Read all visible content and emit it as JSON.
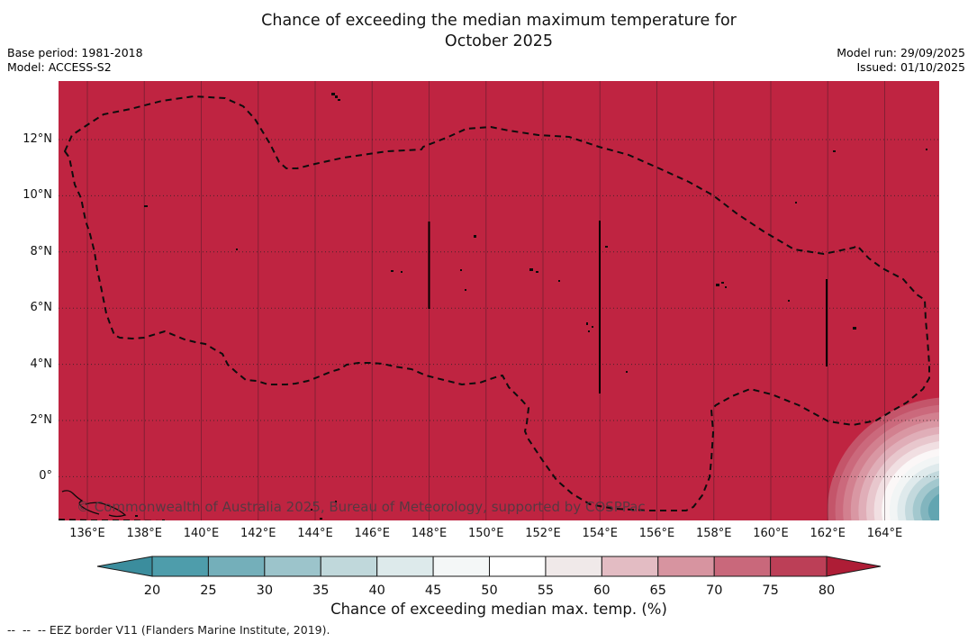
{
  "header": {
    "title_line1": "Chance of exceeding the median maximum temperature for",
    "title_line2": "October 2025",
    "meta_left": [
      "Base period: 1981-2018",
      "Model: ACCESS-S2"
    ],
    "meta_right": [
      "Model run: 29/09/2025",
      "Issued: 01/10/2025"
    ]
  },
  "map": {
    "watermark": "© Commonwealth of Australia 2025, Bureau of Meteorology, supported by COSPPac",
    "x_tick_labels": [
      "136°E",
      "138°E",
      "140°E",
      "142°E",
      "144°E",
      "146°E",
      "148°E",
      "150°E",
      "152°E",
      "154°E",
      "156°E",
      "158°E",
      "160°E",
      "162°E",
      "164°E"
    ],
    "y_tick_labels": [
      "12°N",
      "10°N",
      "8°N",
      "6°N",
      "4°N",
      "2°N",
      "0°"
    ]
  },
  "colorbar": {
    "ticks": [
      "20",
      "25",
      "30",
      "35",
      "40",
      "45",
      "50",
      "55",
      "60",
      "65",
      "70",
      "75",
      "80"
    ],
    "label": "Chance of exceeding median max. temp. (%)",
    "segment_colors": [
      "#4e9dab",
      "#74afba",
      "#9cc4cb",
      "#c0d8db",
      "#ddeaeb",
      "#f4f7f7",
      "#ffffff",
      "#f0e9e9",
      "#e3bcc3",
      "#d794a0",
      "#c9687b",
      "#bc3f57"
    ],
    "under_arrow_color": "#3b8d9d",
    "over_arrow_color": "#ae1d36"
  },
  "footnote": "--  --  -- EEZ border V11 (Flanders Marine Institute, 2019).",
  "colors": {
    "map_fill": "#bf2441",
    "grid_vertical": "rgba(45,25,32,0.4)",
    "grid_horizontal": "#222222",
    "eez_line": "#0d0d0d",
    "watermark_text": "#4d3b42",
    "blob_bands": [
      "#c4556a",
      "#cb697c",
      "#d2808f",
      "#d997a3",
      "#e0aeb8",
      "#e8c7cd",
      "#f1dfe2",
      "#fbf7f7",
      "#f2f5f5",
      "#dfeaec",
      "#c3d9dd",
      "#a3c8ce",
      "#82b5be",
      "#62a5b1"
    ]
  },
  "chart_data": {
    "type": "heatmap",
    "title": "Chance of exceeding the median maximum temperature for October 2025",
    "base_period": "1981-2018",
    "model": "ACCESS-S2",
    "model_run": "29/09/2025",
    "issued": "01/10/2025",
    "x_axis": {
      "label_ticks": [
        "136°E",
        "138°E",
        "140°E",
        "142°E",
        "144°E",
        "146°E",
        "148°E",
        "150°E",
        "152°E",
        "154°E",
        "156°E",
        "158°E",
        "160°E",
        "162°E",
        "164°E"
      ],
      "range_deg_east": [
        135,
        166
      ]
    },
    "y_axis": {
      "label_ticks": [
        "12°N",
        "10°N",
        "8°N",
        "6°N",
        "4°N",
        "2°N",
        "0°"
      ],
      "range_deg_north": [
        -1.5,
        14
      ]
    },
    "colorbar": {
      "label": "Chance of exceeding median max. temp. (%)",
      "ticks": [
        20,
        25,
        30,
        35,
        40,
        45,
        50,
        55,
        60,
        65,
        70,
        75,
        80
      ],
      "units": "%"
    },
    "field_values": [
      {
        "region": "Entire mapped domain incl. FSM EEZ (135°E–166°E, 1.5°S–14°N)",
        "chance_percent": ">80"
      },
      {
        "region": "Local minimum pocket at south-east corner (~164–166°E, 1°S–2°N)",
        "chance_percent": "20–45, decreasing toward ~165.5°E, 0.5°S"
      }
    ],
    "overlays": [
      "Dashed EEZ border polygon (FSM EEZ) spanning ~135.2°E–166°E, ~1°S–14°N",
      "Vertical boundary line at 148°E from 6°N to 9°N",
      "Vertical boundary line at 154°E from 3°N to 9°N",
      "Vertical boundary line at 162°E from 4°N to 7°N",
      "Small island marks: Guam, Yap, Chuuk, Pohnpei, Kosrae and minor atolls",
      "Dashed border fragment along bottom edge (135°E–143°E at ~1.5°S)"
    ],
    "footnote": "--  --  -- EEZ border V11 (Flanders Marine Institute, 2019)."
  }
}
